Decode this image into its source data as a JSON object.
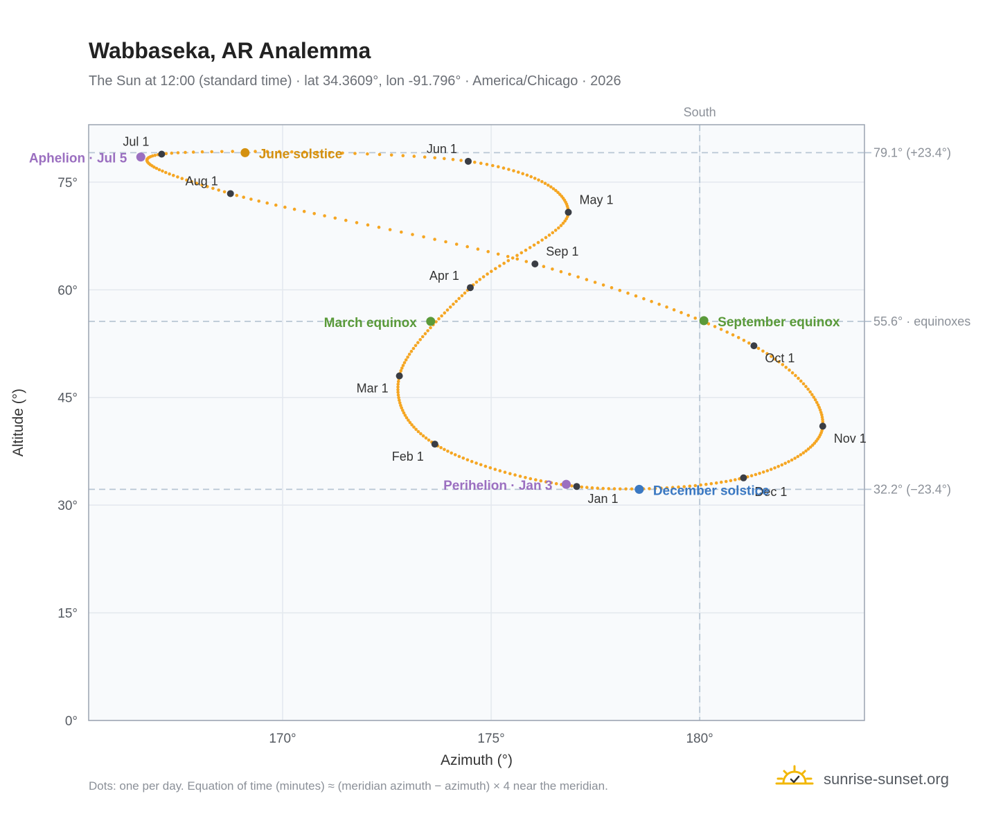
{
  "header": {
    "title": "Wabbaseka, AR Analemma",
    "subtitle": "The Sun at 12:00 (standard time) · lat 34.3609°, lon -91.796° · America/Chicago · 2026"
  },
  "footer": {
    "note": "Dots: one per day. Equation of time (minutes) ≈ (meridian azimuth − azimuth) × 4 near the meridian.",
    "brand": "sunrise-sunset.org"
  },
  "colors": {
    "path": "#f5a623",
    "month_dot": "#3a3d44",
    "solstice_june": "#d4900f",
    "equinox": "#5a9a3a",
    "solstice_december": "#3a78c2",
    "apsis": "#9b6fc0",
    "reference_line": "#b8c6d4",
    "plot_bg": "#f8fafc",
    "plot_border": "#9aa3b0"
  },
  "chart_data": {
    "type": "scatter",
    "xlabel": "Azimuth (°)",
    "ylabel": "Altitude (°)",
    "xlim": [
      165.35,
      183.95
    ],
    "ylim": [
      0,
      83
    ],
    "x_ticks": [
      {
        "value": 170,
        "label": "170°"
      },
      {
        "value": 175,
        "label": "175°"
      },
      {
        "value": 180,
        "label": "180°"
      }
    ],
    "y_ticks": [
      {
        "value": 0,
        "label": "0°"
      },
      {
        "value": 15,
        "label": "15°"
      },
      {
        "value": 30,
        "label": "30°"
      },
      {
        "value": 45,
        "label": "45°"
      },
      {
        "value": 60,
        "label": "60°"
      },
      {
        "value": 75,
        "label": "75°"
      }
    ],
    "grid": true,
    "reference_lines": {
      "vertical": [
        {
          "value": 180,
          "label": "South"
        }
      ],
      "horizontal": [
        {
          "value": 79.1,
          "label": "79.1° (+23.4°)"
        },
        {
          "value": 55.6,
          "label": "55.6° · equinoxes"
        },
        {
          "value": 32.2,
          "label": "32.2° (−23.4°)"
        }
      ]
    },
    "month_markers": [
      {
        "label": "Jan 1",
        "az": 177.05,
        "alt": 32.6
      },
      {
        "label": "Feb 1",
        "az": 173.65,
        "alt": 38.5
      },
      {
        "label": "Mar 1",
        "az": 172.8,
        "alt": 48.0
      },
      {
        "label": "Apr 1",
        "az": 174.5,
        "alt": 60.3
      },
      {
        "label": "May 1",
        "az": 176.85,
        "alt": 70.8
      },
      {
        "label": "Jun 1",
        "az": 174.45,
        "alt": 77.9
      },
      {
        "label": "Jul 1",
        "az": 167.1,
        "alt": 78.9
      },
      {
        "label": "Aug 1",
        "az": 168.75,
        "alt": 73.4
      },
      {
        "label": "Sep 1",
        "az": 176.05,
        "alt": 63.6
      },
      {
        "label": "Oct 1",
        "az": 181.3,
        "alt": 52.2
      },
      {
        "label": "Nov 1",
        "az": 182.95,
        "alt": 41.0
      },
      {
        "label": "Dec 1",
        "az": 181.05,
        "alt": 33.8
      }
    ],
    "events": [
      {
        "label": "June solstice",
        "kind": "solstice_june",
        "az": 169.1,
        "alt": 79.1
      },
      {
        "label": "March equinox",
        "kind": "equinox",
        "az": 173.55,
        "alt": 55.6
      },
      {
        "label": "September equinox",
        "kind": "equinox",
        "az": 180.1,
        "alt": 55.7
      },
      {
        "label": "December solstice",
        "kind": "solstice_december",
        "az": 178.55,
        "alt": 32.2
      },
      {
        "label": "Aphelion · Jul 5",
        "kind": "apsis",
        "az": 166.6,
        "alt": 78.5
      },
      {
        "label": "Perihelion · Jan 3",
        "kind": "apsis",
        "az": 176.8,
        "alt": 32.9
      }
    ],
    "dot_spacing": "one per day"
  }
}
